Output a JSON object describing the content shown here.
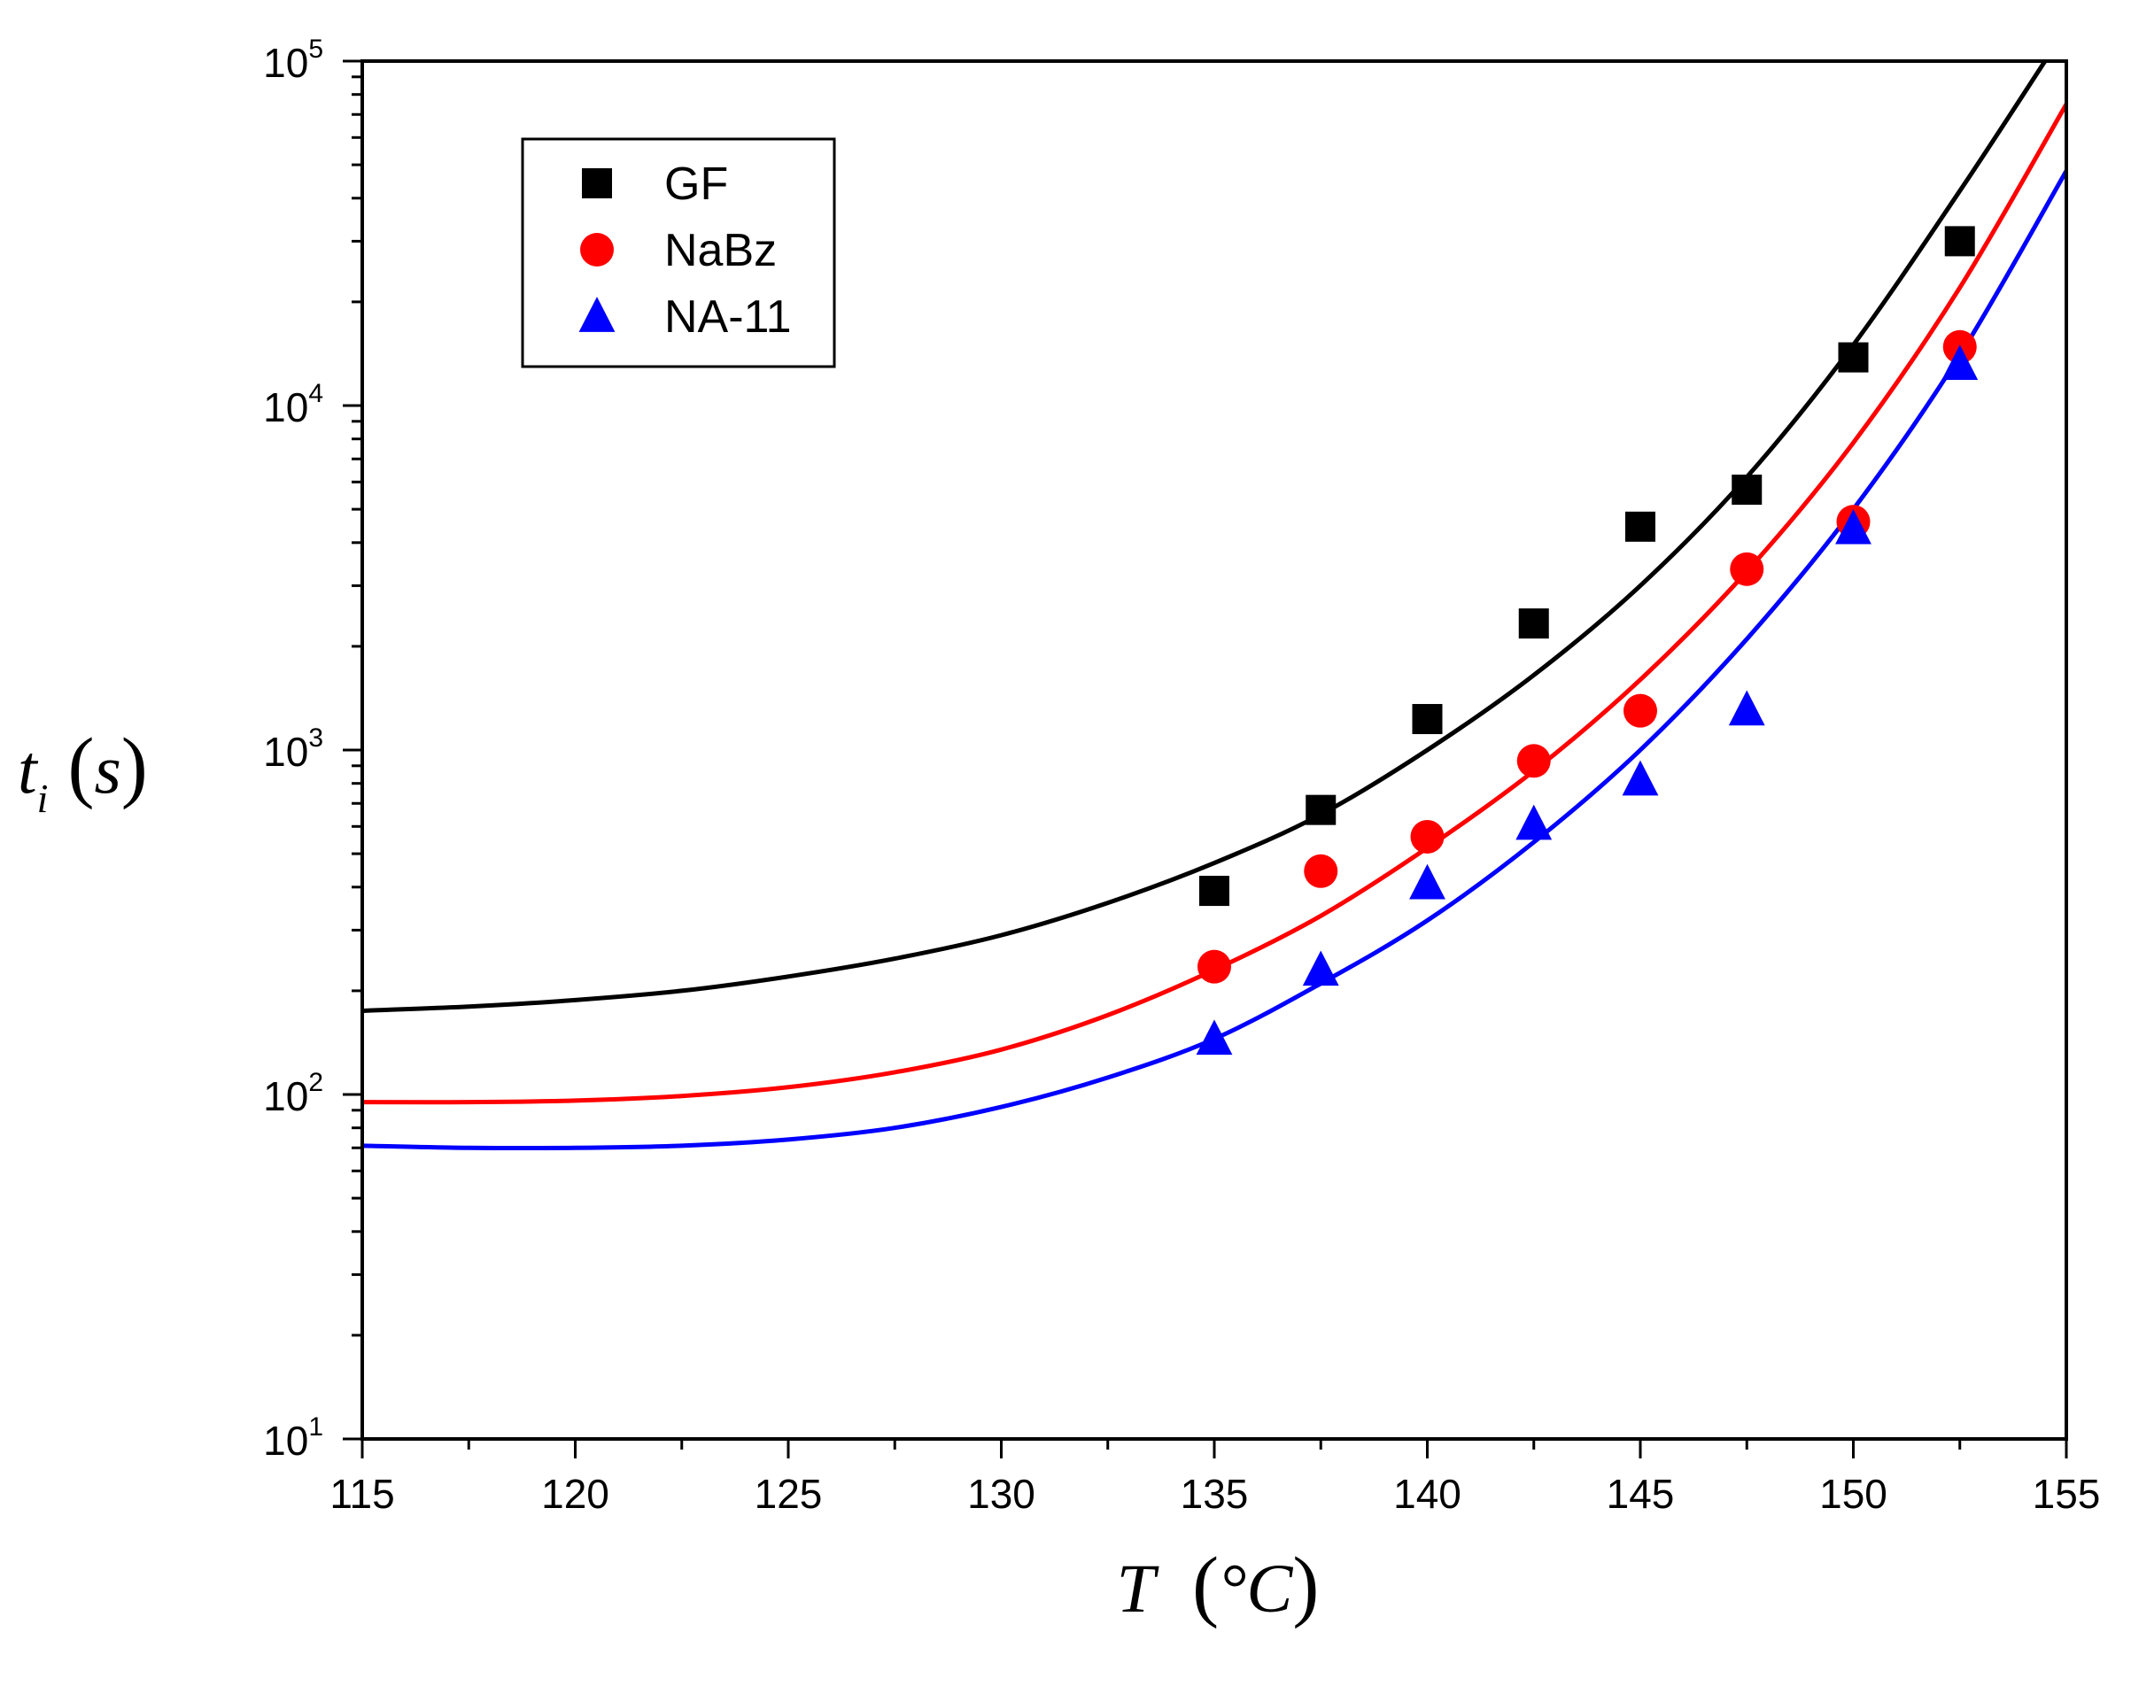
{
  "chart_data": {
    "type": "scatter",
    "xlabel": {
      "symbol": "T",
      "unit": "°C"
    },
    "ylabel": {
      "symbol": "t",
      "subscript": "i",
      "unit": "s"
    },
    "xlim": [
      115,
      155
    ],
    "ylim": [
      10,
      100000
    ],
    "yscale": "log",
    "x_ticks": [
      "115",
      "120",
      "125",
      "130",
      "135",
      "140",
      "145",
      "150",
      "155"
    ],
    "y_ticks": [
      {
        "base": "10",
        "exp": "1"
      },
      {
        "base": "10",
        "exp": "2"
      },
      {
        "base": "10",
        "exp": "3"
      },
      {
        "base": "10",
        "exp": "4"
      },
      {
        "base": "10",
        "exp": "5"
      }
    ],
    "legend_position": "top-left",
    "series": [
      {
        "name": "GF",
        "marker": "square",
        "color": "#000000",
        "x": [
          135,
          137.5,
          140,
          142.5,
          145,
          147.5,
          150,
          152.5
        ],
        "y": [
          390,
          670,
          1230,
          2330,
          4450,
          5700,
          13800,
          30000
        ],
        "fit_x": [
          115,
          117.5,
          120,
          122.5,
          125,
          127.5,
          130,
          132.5,
          135,
          137.5,
          140,
          142.5,
          145,
          147.5,
          150,
          152.5,
          154.5
        ],
        "fit_y": [
          175,
          180,
          188,
          200,
          220,
          248,
          290,
          360,
          470,
          650,
          1000,
          1650,
          3000,
          6200,
          15000,
          42000,
          100000
        ]
      },
      {
        "name": "NaBz",
        "marker": "circle",
        "color": "#ff0000",
        "x": [
          135,
          137.5,
          140,
          142.5,
          145,
          147.5,
          150,
          152.5
        ],
        "y": [
          235,
          445,
          560,
          930,
          1300,
          3350,
          4600,
          14800
        ],
        "fit_x": [
          115,
          117.5,
          120,
          122.5,
          125,
          127.5,
          130,
          132.5,
          135,
          137.5,
          140,
          142.5,
          145,
          147.5,
          150,
          152.5,
          155
        ],
        "fit_y": [
          95,
          95,
          96,
          99,
          105,
          116,
          135,
          170,
          230,
          330,
          520,
          870,
          1600,
          3300,
          7800,
          22000,
          75000
        ]
      },
      {
        "name": "NA-11",
        "marker": "triangle",
        "color": "#0000ff",
        "x": [
          135,
          137.5,
          140,
          142.5,
          145,
          147.5,
          150,
          152.5
        ],
        "y": [
          145,
          230,
          410,
          610,
          820,
          1310,
          4400,
          13200
        ],
        "fit_x": [
          115,
          117.5,
          120,
          122.5,
          125,
          127.5,
          130,
          132.5,
          135,
          137.5,
          140,
          142.5,
          145,
          147.5,
          150,
          152.5,
          155
        ],
        "fit_y": [
          71,
          70,
          70,
          71,
          74,
          80,
          92,
          112,
          145,
          210,
          320,
          540,
          1000,
          2100,
          5000,
          14000,
          48000
        ]
      }
    ]
  }
}
